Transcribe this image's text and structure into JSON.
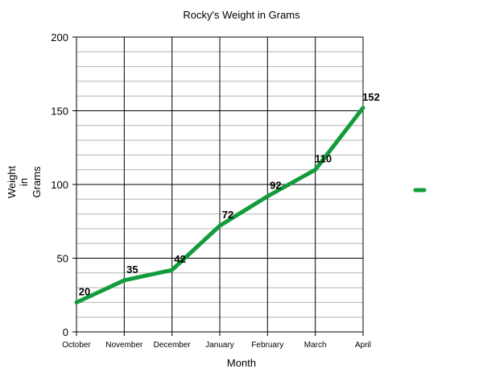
{
  "chart_data": {
    "type": "line",
    "title": "Rocky's Weight in Grams",
    "xlabel": "Month",
    "ylabel_lines": [
      "Weight",
      "in",
      "Grams"
    ],
    "categories": [
      "October",
      "November",
      "December",
      "January",
      "February",
      "March",
      "April"
    ],
    "series": [
      {
        "values": [
          20,
          35,
          42,
          72,
          92,
          110,
          152
        ],
        "color": "#129c3b"
      }
    ],
    "ylim": [
      0,
      200
    ],
    "yticks": [
      0,
      50,
      100,
      150,
      200
    ],
    "y_minor_step": 10,
    "grid": true,
    "legend": "right"
  }
}
